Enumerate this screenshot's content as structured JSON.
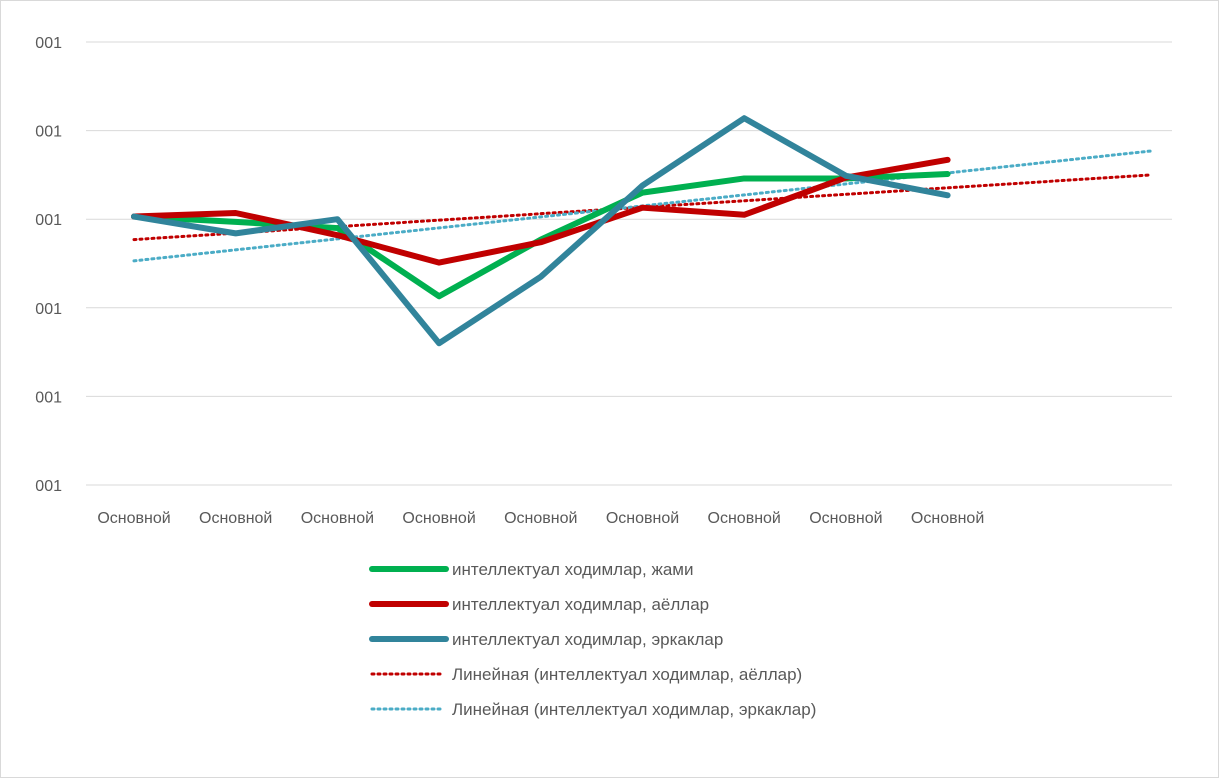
{
  "chart_data": {
    "type": "line",
    "title": "",
    "xlabel": "",
    "ylabel": "",
    "categories": [
      "Основной",
      "Основной",
      "Основной",
      "Основной",
      "Основной",
      "Основной",
      "Основной",
      "Основной",
      "Основной"
    ],
    "y_tick_labels": [
      "001",
      "001",
      "001",
      "001",
      "001",
      "001"
    ],
    "ylim": [
      0,
      5
    ],
    "grid": true,
    "legend_position": "bottom",
    "series": [
      {
        "name": "интеллектуал ходимлар, жами",
        "color": "#00b050",
        "style": "solid",
        "values": [
          3.03,
          2.97,
          2.9,
          2.13,
          2.77,
          3.3,
          3.46,
          3.46,
          3.51
        ]
      },
      {
        "name": "интеллектуал ходимлар, аёллар",
        "color": "#c00000",
        "style": "solid",
        "values": [
          3.03,
          3.07,
          2.82,
          2.51,
          2.74,
          3.13,
          3.05,
          3.47,
          3.67
        ]
      },
      {
        "name": "интеллектуал ходимлар, эркаклар",
        "color": "#31849b",
        "style": "solid",
        "values": [
          3.03,
          2.84,
          3.0,
          1.6,
          2.35,
          3.38,
          4.14,
          3.49,
          3.27
        ]
      },
      {
        "name": "Линейная (интеллектуал ходимлар, аёллар)",
        "color": "#c00000",
        "style": "dotted",
        "trend": {
          "x_start": 0,
          "x_end": 10,
          "y_start": 2.77,
          "y_end": 3.5
        }
      },
      {
        "name": "Линейная (интеллектуал ходимлар, эркаклар)",
        "color": "#4bacc6",
        "style": "dotted",
        "trend": {
          "x_start": 0,
          "x_end": 10,
          "y_start": 2.53,
          "y_end": 3.77
        }
      }
    ]
  }
}
